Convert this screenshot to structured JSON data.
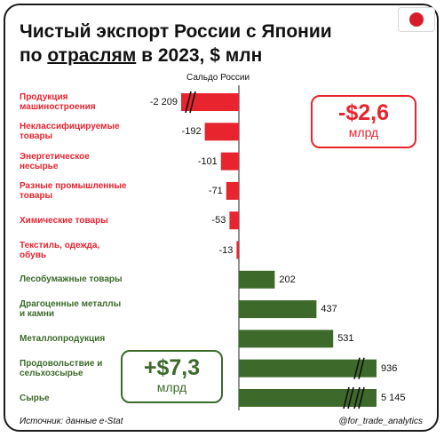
{
  "title": {
    "line1": "Чистый экспорт России с Японии",
    "line2_prefix": "по ",
    "line2_underlined": "отраслям",
    "line2_suffix": " в 2023, $ млн"
  },
  "axis_label": "Сальдо России",
  "chart_data": {
    "type": "bar",
    "orientation": "horizontal",
    "categories": [
      "Продукция машиностроения",
      "Неклассифицируемые товары",
      "Энергетическое несырье",
      "Разные промышленные товары",
      "Химические товары",
      "Текстиль, одежда, обувь",
      "Лесобумажные товары",
      "Драгоценные металлы и камни",
      "Металлопродукция",
      "Продовольствие и сельхозсырье",
      "Сырье"
    ],
    "category_lines": [
      [
        "Продукция",
        "машиностроения"
      ],
      [
        "Неклассифицируемые",
        "товары"
      ],
      [
        "Энергетическое",
        "несырье"
      ],
      [
        "Разные промышленные",
        "товары"
      ],
      [
        "Химические товары"
      ],
      [
        "Текстиль, одежда,",
        "обувь"
      ],
      [
        "Лесобумажные товары"
      ],
      [
        "Драгоценные металлы",
        "и камни"
      ],
      [
        "Металлопродукция"
      ],
      [
        "Продовольствие и",
        "сельхозсырье"
      ],
      [
        "Сырье"
      ]
    ],
    "values": [
      -2209,
      -192,
      -101,
      -71,
      -53,
      -13,
      202,
      437,
      531,
      936,
      5145
    ],
    "value_labels": [
      "-2 209",
      "-192",
      "-101",
      "-71",
      "-53",
      "-13",
      "202",
      "437",
      "531",
      "936",
      "5 145"
    ],
    "axis_breaks": [
      1,
      0,
      0,
      0,
      0,
      0,
      0,
      0,
      0,
      1,
      2
    ],
    "xlabel": "Сальдо России",
    "colors": {
      "negative": "#e8242f",
      "positive": "#3d6a2b"
    }
  },
  "totals": {
    "negative": {
      "value": "-$2,6",
      "unit": "млрд"
    },
    "positive": {
      "value": "+$7,3",
      "unit": "млрд"
    }
  },
  "footer": {
    "source": "Источник: данные e-Stat",
    "handle": "@for_trade_analytics"
  }
}
